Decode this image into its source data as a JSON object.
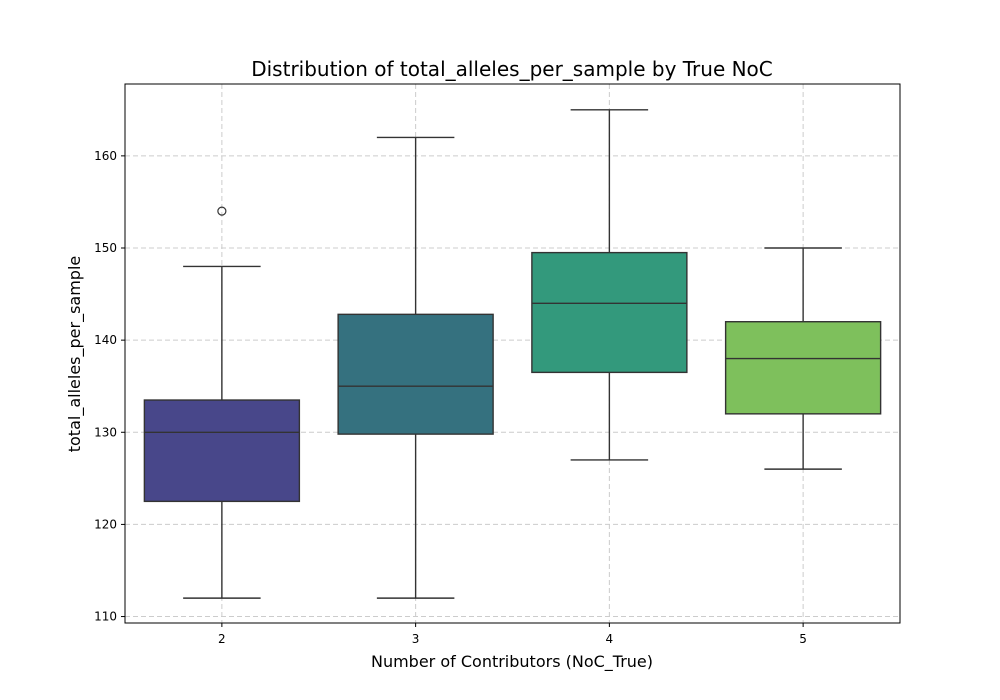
{
  "chart_data": {
    "type": "box",
    "title": "Distribution of total_alleles_per_sample by True NoC",
    "xlabel": "Number of Contributors (NoC_True)",
    "ylabel": "total_alleles_per_sample",
    "categories": [
      "2",
      "3",
      "4",
      "5"
    ],
    "ylim": [
      109.3,
      167.8
    ],
    "yticks": [
      110,
      120,
      130,
      140,
      150,
      160
    ],
    "grid": true,
    "boxes": [
      {
        "category": "2",
        "whisker_low": 112,
        "q1": 122.5,
        "median": 130,
        "q3": 133.5,
        "whisker_high": 148,
        "outliers": [
          154
        ],
        "color": "#48478a"
      },
      {
        "category": "3",
        "whisker_low": 112,
        "q1": 129.8,
        "median": 135,
        "q3": 142.8,
        "whisker_high": 162,
        "outliers": [],
        "color": "#35717f"
      },
      {
        "category": "4",
        "whisker_low": 127,
        "q1": 136.5,
        "median": 144,
        "q3": 149.5,
        "whisker_high": 165,
        "outliers": [],
        "color": "#33997c"
      },
      {
        "category": "5",
        "whisker_low": 126,
        "q1": 132,
        "median": 138,
        "q3": 142,
        "whisker_high": 150,
        "outliers": [],
        "color": "#7ec05c"
      }
    ]
  }
}
